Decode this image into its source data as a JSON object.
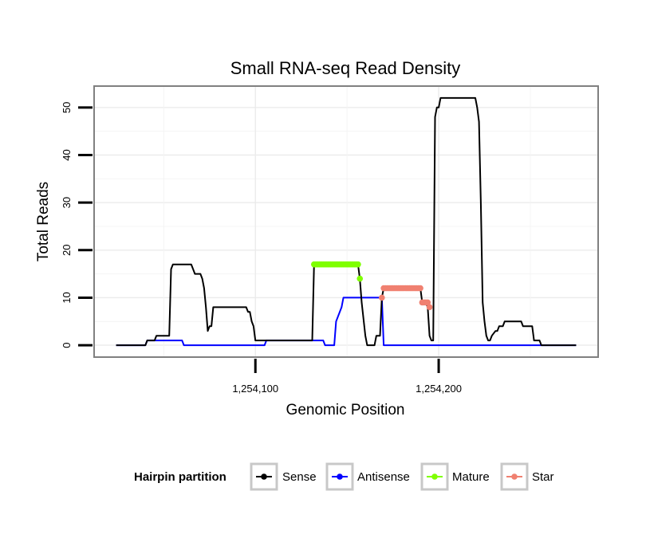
{
  "chart_data": {
    "type": "line",
    "title": "Small RNA-seq Read Density",
    "xlabel": "Genomic Position",
    "ylabel": "Total Reads",
    "xlim": [
      1254012,
      1254287
    ],
    "ylim": [
      -2.5,
      54.5
    ],
    "x_ticks": [
      1254100,
      1254200
    ],
    "x_tick_labels": [
      "1,254,100",
      "1,254,200"
    ],
    "y_ticks": [
      0,
      10,
      20,
      30,
      40,
      50
    ],
    "y_tick_labels": [
      "0",
      "10",
      "20",
      "30",
      "40",
      "50"
    ],
    "legend": {
      "title": "Hairpin partition",
      "position": "bottom",
      "entries": [
        "Sense",
        "Antisense",
        "Mature",
        "Star"
      ]
    },
    "series": [
      {
        "name": "Sense",
        "color": "#000000",
        "style": "line",
        "points": [
          [
            1254024,
            0
          ],
          [
            1254040,
            0
          ],
          [
            1254041,
            1
          ],
          [
            1254045,
            1
          ],
          [
            1254046,
            2
          ],
          [
            1254053,
            2
          ],
          [
            1254054,
            16
          ],
          [
            1254055,
            17
          ],
          [
            1254060,
            17
          ],
          [
            1254065,
            17
          ],
          [
            1254066,
            16
          ],
          [
            1254067,
            15
          ],
          [
            1254070,
            15
          ],
          [
            1254071,
            14
          ],
          [
            1254072,
            12
          ],
          [
            1254073,
            8
          ],
          [
            1254074,
            3
          ],
          [
            1254075,
            4
          ],
          [
            1254076,
            4
          ],
          [
            1254077,
            8
          ],
          [
            1254083,
            8
          ],
          [
            1254090,
            8
          ],
          [
            1254095,
            8
          ],
          [
            1254096,
            7
          ],
          [
            1254097,
            7
          ],
          [
            1254098,
            5
          ],
          [
            1254099,
            4
          ],
          [
            1254100,
            1
          ],
          [
            1254105,
            1
          ],
          [
            1254115,
            1
          ],
          [
            1254125,
            1
          ],
          [
            1254131,
            1
          ],
          [
            1254132,
            17
          ],
          [
            1254134,
            17
          ],
          [
            1254150,
            17
          ],
          [
            1254156,
            17
          ],
          [
            1254157,
            14
          ],
          [
            1254158,
            9
          ],
          [
            1254160,
            2
          ],
          [
            1254161,
            0
          ],
          [
            1254165,
            0
          ],
          [
            1254166,
            2
          ],
          [
            1254168,
            2
          ],
          [
            1254169,
            10
          ],
          [
            1254170,
            12
          ],
          [
            1254185,
            12
          ],
          [
            1254190,
            12
          ],
          [
            1254191,
            9
          ],
          [
            1254193,
            9
          ],
          [
            1254194,
            8
          ],
          [
            1254195,
            2
          ],
          [
            1254196,
            1
          ],
          [
            1254197,
            1
          ],
          [
            1254198,
            48
          ],
          [
            1254199,
            50
          ],
          [
            1254200,
            50
          ],
          [
            1254201,
            52
          ],
          [
            1254210,
            52
          ],
          [
            1254220,
            52
          ],
          [
            1254221,
            50
          ],
          [
            1254222,
            47
          ],
          [
            1254223,
            30
          ],
          [
            1254224,
            9
          ],
          [
            1254225,
            5
          ],
          [
            1254226,
            2
          ],
          [
            1254227,
            1
          ],
          [
            1254228,
            1
          ],
          [
            1254229,
            2
          ],
          [
            1254231,
            3
          ],
          [
            1254232,
            3
          ],
          [
            1254233,
            4
          ],
          [
            1254235,
            4
          ],
          [
            1254236,
            5
          ],
          [
            1254240,
            5
          ],
          [
            1254245,
            5
          ],
          [
            1254246,
            4
          ],
          [
            1254251,
            4
          ],
          [
            1254252,
            1
          ],
          [
            1254255,
            1
          ],
          [
            1254256,
            0
          ],
          [
            1254275,
            0
          ]
        ]
      },
      {
        "name": "Antisense",
        "color": "#0000ff",
        "style": "line",
        "points": [
          [
            1254024,
            0
          ],
          [
            1254040,
            0
          ],
          [
            1254041,
            1
          ],
          [
            1254050,
            1
          ],
          [
            1254055,
            1
          ],
          [
            1254060,
            1
          ],
          [
            1254061,
            0
          ],
          [
            1254080,
            0
          ],
          [
            1254105,
            0
          ],
          [
            1254106,
            1
          ],
          [
            1254120,
            1
          ],
          [
            1254130,
            1
          ],
          [
            1254137,
            1
          ],
          [
            1254138,
            0
          ],
          [
            1254143,
            0
          ],
          [
            1254144,
            5
          ],
          [
            1254147,
            8
          ],
          [
            1254148,
            10
          ],
          [
            1254160,
            10
          ],
          [
            1254169,
            10
          ],
          [
            1254170,
            0
          ],
          [
            1254200,
            0
          ],
          [
            1254240,
            0
          ],
          [
            1254275,
            0
          ]
        ]
      },
      {
        "name": "Mature",
        "color": "#7fff00",
        "style": "points",
        "points": [
          [
            1254132,
            17
          ],
          [
            1254133,
            17
          ],
          [
            1254134,
            17
          ],
          [
            1254135,
            17
          ],
          [
            1254136,
            17
          ],
          [
            1254137,
            17
          ],
          [
            1254138,
            17
          ],
          [
            1254139,
            17
          ],
          [
            1254140,
            17
          ],
          [
            1254141,
            17
          ],
          [
            1254142,
            17
          ],
          [
            1254143,
            17
          ],
          [
            1254144,
            17
          ],
          [
            1254145,
            17
          ],
          [
            1254146,
            17
          ],
          [
            1254147,
            17
          ],
          [
            1254148,
            17
          ],
          [
            1254149,
            17
          ],
          [
            1254150,
            17
          ],
          [
            1254151,
            17
          ],
          [
            1254152,
            17
          ],
          [
            1254153,
            17
          ],
          [
            1254154,
            17
          ],
          [
            1254155,
            17
          ],
          [
            1254156,
            17
          ],
          [
            1254157,
            14
          ]
        ]
      },
      {
        "name": "Star",
        "color": "#f08070",
        "style": "points",
        "points": [
          [
            1254169,
            10
          ],
          [
            1254170,
            12
          ],
          [
            1254171,
            12
          ],
          [
            1254172,
            12
          ],
          [
            1254173,
            12
          ],
          [
            1254174,
            12
          ],
          [
            1254175,
            12
          ],
          [
            1254176,
            12
          ],
          [
            1254177,
            12
          ],
          [
            1254178,
            12
          ],
          [
            1254179,
            12
          ],
          [
            1254180,
            12
          ],
          [
            1254181,
            12
          ],
          [
            1254182,
            12
          ],
          [
            1254183,
            12
          ],
          [
            1254184,
            12
          ],
          [
            1254185,
            12
          ],
          [
            1254186,
            12
          ],
          [
            1254187,
            12
          ],
          [
            1254188,
            12
          ],
          [
            1254189,
            12
          ],
          [
            1254190,
            12
          ],
          [
            1254191,
            9
          ],
          [
            1254192,
            9
          ],
          [
            1254193,
            9
          ],
          [
            1254194,
            9
          ],
          [
            1254195,
            8
          ]
        ]
      }
    ]
  }
}
